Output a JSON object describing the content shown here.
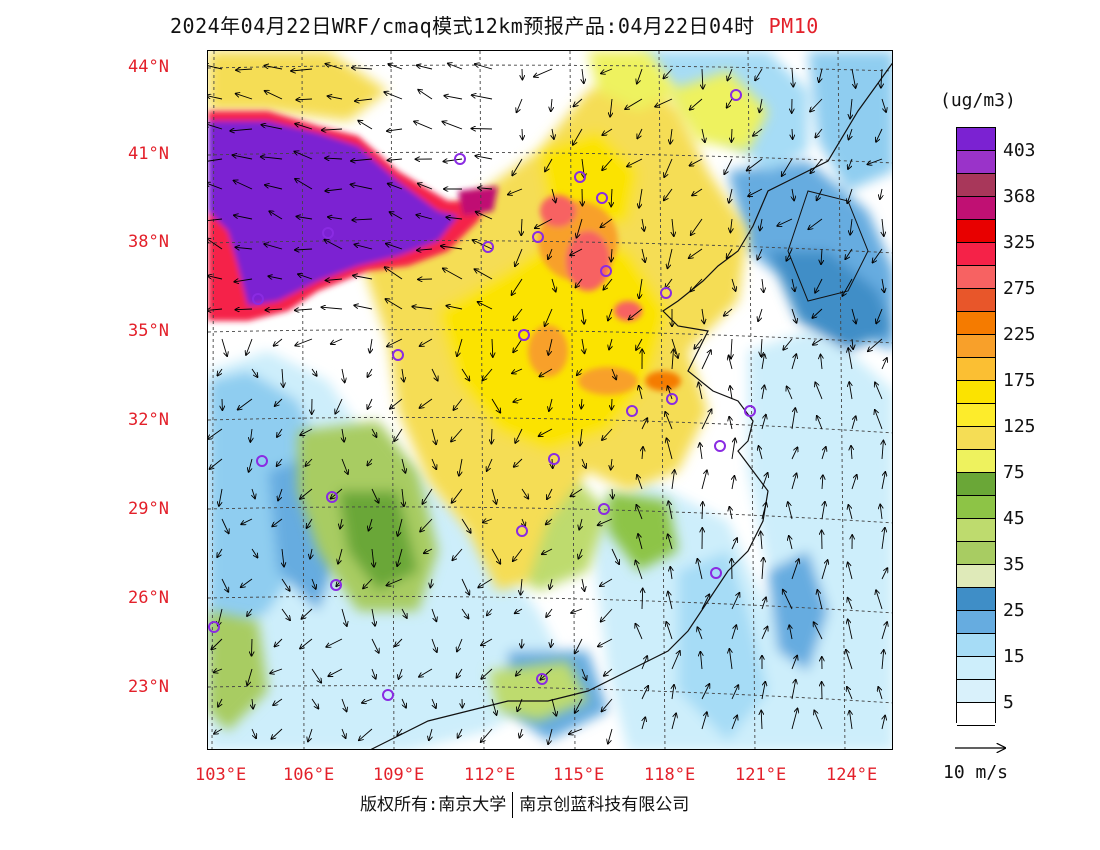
{
  "title": {
    "text": "2024年04月22日WRF/cmaq模式12km预报产品:04月22日04时",
    "pollutant": "PM10"
  },
  "axes": {
    "lat_labels": [
      "44°N",
      "41°N",
      "38°N",
      "35°N",
      "32°N",
      "29°N",
      "26°N",
      "23°N"
    ],
    "lon_labels": [
      "103°E",
      "106°E",
      "109°E",
      "112°E",
      "115°E",
      "118°E",
      "121°E",
      "124°E"
    ]
  },
  "colorbar": {
    "unit": "(ug/m3)",
    "levels": [
      {
        "color": "#7b22d2"
      },
      {
        "color": "#9a33c9"
      },
      {
        "color": "#a8375a"
      },
      {
        "color": "#c01073"
      },
      {
        "color": "#e80000"
      },
      {
        "color": "#f52248"
      },
      {
        "color": "#f76262"
      },
      {
        "color": "#e8562a"
      },
      {
        "color": "#f57b00"
      },
      {
        "color": "#f8a02a"
      },
      {
        "color": "#fbbf33"
      },
      {
        "color": "#fbe300"
      },
      {
        "color": "#fdec2b"
      },
      {
        "color": "#f5dd55"
      },
      {
        "color": "#eef25e"
      },
      {
        "color": "#6aa737"
      },
      {
        "color": "#8dc446"
      },
      {
        "color": "#bedb6e"
      },
      {
        "color": "#a8cc62"
      },
      {
        "color": "#dfeab9"
      },
      {
        "color": "#3f8ec7"
      },
      {
        "color": "#66ace0"
      },
      {
        "color": "#a6dcf6"
      },
      {
        "color": "#cdeefb"
      },
      {
        "color": "#d9f1fb"
      },
      {
        "color": "#ffffff"
      }
    ],
    "tick_labels": [
      "403",
      "368",
      "325",
      "275",
      "225",
      "175",
      "125",
      "75",
      "45",
      "35",
      "25",
      "15",
      "5"
    ]
  },
  "wind_reference": {
    "label": "10 m/s"
  },
  "footer": {
    "left": "版权所有:南京大学",
    "right": "南京创蓝科技有限公司"
  },
  "colors": {
    "accent_red": "#e3202a",
    "station_marker": "#8a2be2"
  }
}
